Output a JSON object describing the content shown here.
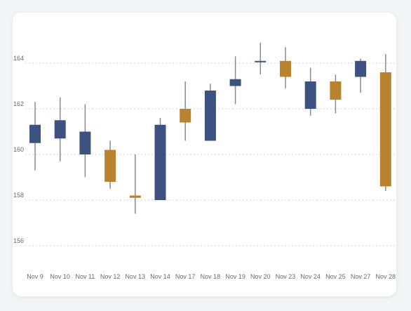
{
  "chart_data": {
    "type": "candlestick",
    "title": "",
    "xlabel": "",
    "ylabel": "",
    "ylim": [
      154.5,
      165.5
    ],
    "yticks": [
      156,
      158,
      160,
      162,
      164
    ],
    "grid": true,
    "colors": {
      "up": "#3d5280",
      "down": "#b8832c",
      "wick": "#8a8a8a",
      "grid": "#cfd3d8"
    },
    "candles": [
      {
        "date": "Nov 9",
        "open": 160.5,
        "high": 162.3,
        "low": 159.3,
        "close": 161.3
      },
      {
        "date": "Nov 10",
        "open": 160.7,
        "high": 162.5,
        "low": 159.7,
        "close": 161.5
      },
      {
        "date": "Nov 11",
        "open": 160.0,
        "high": 162.2,
        "low": 159.0,
        "close": 161.0
      },
      {
        "date": "Nov 12",
        "open": 160.2,
        "high": 160.6,
        "low": 158.5,
        "close": 158.8
      },
      {
        "date": "Nov 13",
        "open": 158.2,
        "high": 160.0,
        "low": 157.4,
        "close": 158.1
      },
      {
        "date": "Nov 14",
        "open": 158.0,
        "high": 161.6,
        "low": 158.0,
        "close": 161.3
      },
      {
        "date": "Nov 17",
        "open": 162.0,
        "high": 163.2,
        "low": 160.6,
        "close": 161.4
      },
      {
        "date": "Nov 18",
        "open": 160.6,
        "high": 163.1,
        "low": 160.6,
        "close": 162.8
      },
      {
        "date": "Nov 19",
        "open": 163.0,
        "high": 164.3,
        "low": 162.2,
        "close": 163.3
      },
      {
        "date": "Nov 20",
        "open": 164.1,
        "high": 164.9,
        "low": 163.5,
        "close": 164.1
      },
      {
        "date": "Nov 23",
        "open": 164.1,
        "high": 164.7,
        "low": 162.9,
        "close": 163.4
      },
      {
        "date": "Nov 24",
        "open": 162.0,
        "high": 163.8,
        "low": 161.7,
        "close": 163.2
      },
      {
        "date": "Nov 25",
        "open": 163.2,
        "high": 163.5,
        "low": 161.8,
        "close": 162.4
      },
      {
        "date": "Nov 27",
        "open": 163.4,
        "high": 164.2,
        "low": 162.7,
        "close": 164.1
      },
      {
        "date": "Nov 28",
        "open": 163.6,
        "high": 164.4,
        "low": 158.4,
        "close": 158.6
      }
    ]
  }
}
